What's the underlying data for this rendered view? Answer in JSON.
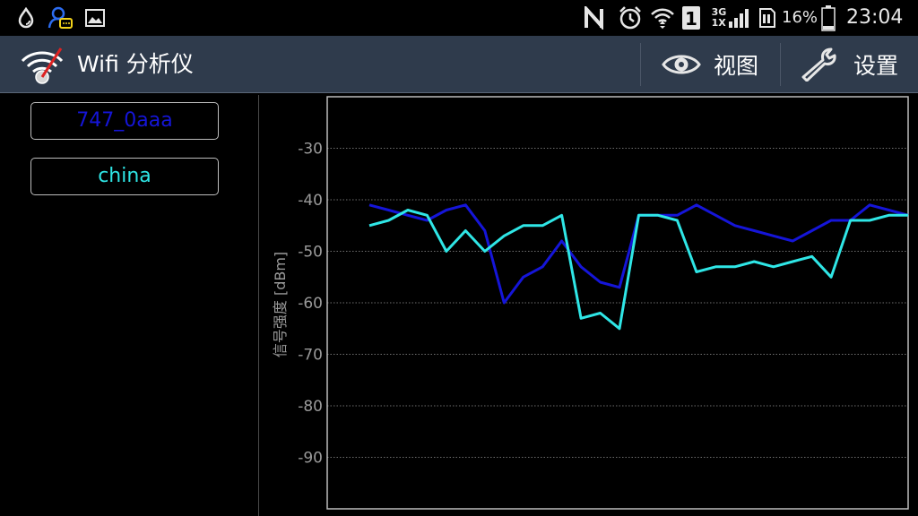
{
  "status_bar": {
    "icons": [
      "water-drop-icon",
      "chat-notification-icon",
      "image-icon",
      "nfc-icon",
      "alarm-icon",
      "wifi-signal-icon",
      "sim-1-icon",
      "mobile-signal-icon",
      "sd-card-icon",
      "battery-icon"
    ],
    "network_top": "3G",
    "network_bottom": "1X",
    "sim_label": "1",
    "battery": "16%",
    "time": "23:04"
  },
  "action_bar": {
    "title": "Wifi 分析仪",
    "view_label": "视图",
    "settings_label": "设置",
    "background": "#2f3b4c"
  },
  "networks": [
    {
      "ssid": "747_0aaa",
      "color": "#1515d8"
    },
    {
      "ssid": "china",
      "color": "#2fe6e6"
    }
  ],
  "chart_data": {
    "type": "line",
    "ylabel": "信号强度 [dBm]",
    "ylim": [
      -100,
      -20
    ],
    "yticks": [
      -30,
      -40,
      -50,
      -60,
      -70,
      -80,
      -90
    ],
    "grid": true,
    "series": [
      {
        "name": "747_0aaa",
        "color": "#1515d8",
        "values": [
          -41,
          -42,
          -43,
          -44,
          -42,
          -41,
          -46,
          -60,
          -55,
          -53,
          -48,
          -53,
          -56,
          -57,
          -43,
          -43,
          -43,
          -41,
          -43,
          -45,
          -46,
          -47,
          -48,
          -46,
          -44,
          -44,
          -41,
          -42,
          -43
        ]
      },
      {
        "name": "china",
        "color": "#2fe6e6",
        "values": [
          -45,
          -44,
          -42,
          -43,
          -50,
          -46,
          -50,
          -47,
          -45,
          -45,
          -43,
          -63,
          -62,
          -65,
          -43,
          -43,
          -44,
          -54,
          -53,
          -53,
          -52,
          -53,
          -52,
          -51,
          -55,
          -44,
          -44,
          -43,
          -43
        ]
      }
    ]
  }
}
